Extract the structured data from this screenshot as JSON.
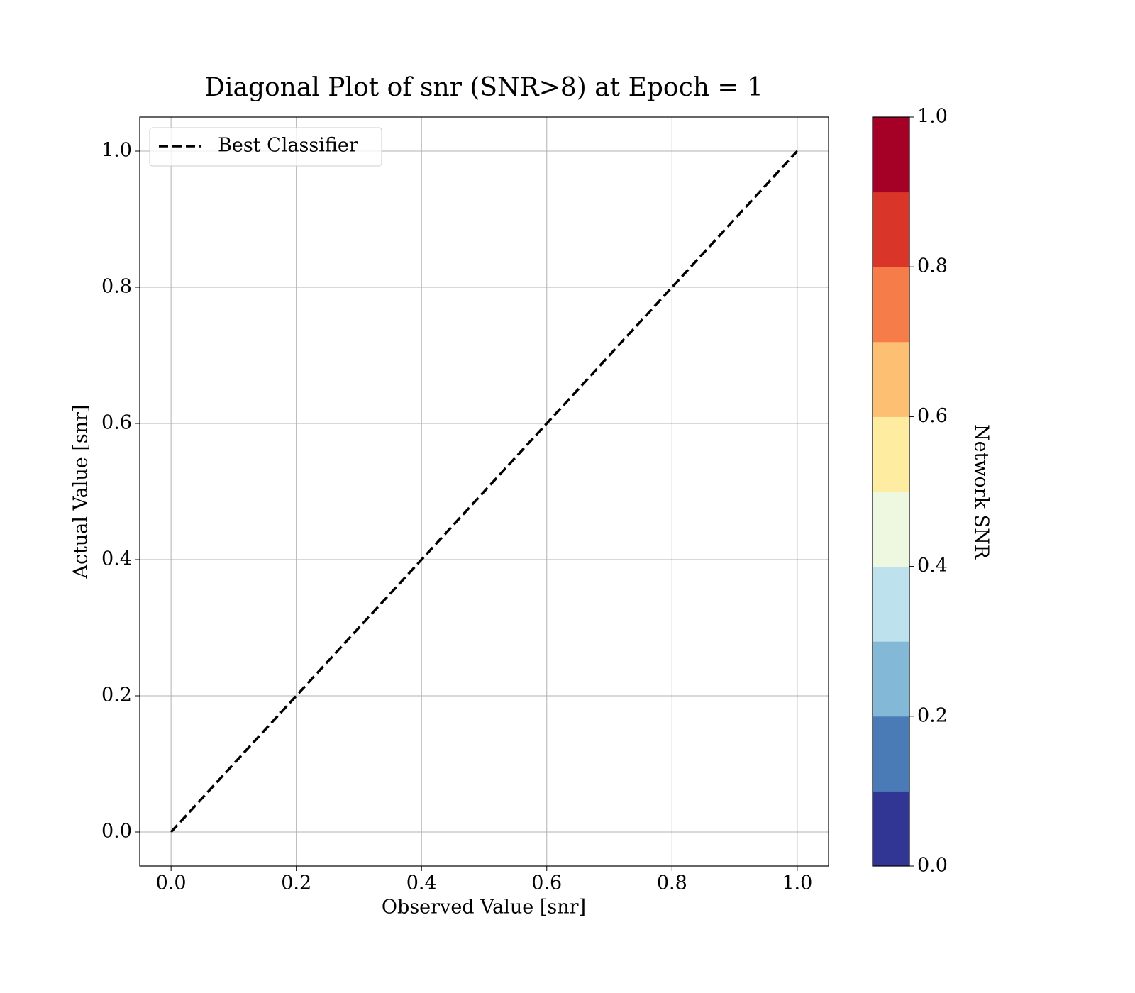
{
  "chart_data": {
    "type": "line",
    "title": "Diagonal Plot of snr (SNR>8) at Epoch = 1",
    "x_label": "Observed Value [snr]",
    "y_label": "Actual Value [snr]",
    "x": [
      0,
      1
    ],
    "series": [
      {
        "name": "Best Classifier",
        "color": "#000000",
        "dashed": true,
        "values": [
          0,
          1
        ]
      }
    ],
    "xlim": [
      -0.05,
      1.05
    ],
    "ylim": [
      -0.05,
      1.05
    ],
    "xticks": [
      {
        "value": 0,
        "label": "0.0"
      },
      0.2,
      0.4,
      0.6,
      0.8,
      {
        "value": 1,
        "label": "1.0"
      }
    ],
    "yticks": [
      {
        "value": 0,
        "label": "0.0"
      },
      0.2,
      0.4,
      0.6,
      0.8,
      {
        "value": 1,
        "label": "1.0"
      }
    ],
    "grid": true,
    "legend": "upper left",
    "colorbar": {
      "label": "Network SNR",
      "lim": [
        0,
        1
      ],
      "ticks": [
        {
          "value": 0,
          "label": "0.0"
        },
        0.2,
        0.4,
        0.6,
        0.8,
        {
          "value": 1,
          "label": "1.0"
        }
      ],
      "colors": [
        "#313695",
        "#4a7bb7",
        "#83b8d7",
        "#bde2ee",
        "#eef8e0",
        "#feeda1",
        "#fdbf71",
        "#f67c4a",
        "#d93529",
        "#a50026"
      ]
    }
  }
}
